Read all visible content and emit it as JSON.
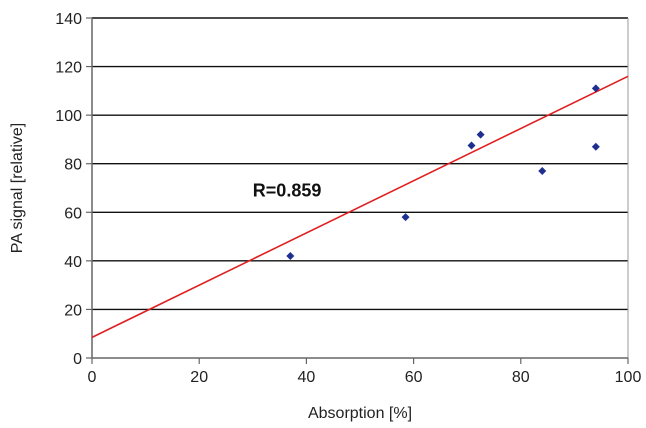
{
  "chart_data": {
    "type": "scatter",
    "title": "",
    "xlabel": "Absorption [%]",
    "ylabel": "PA signal [relative]",
    "xlim": [
      0,
      100
    ],
    "ylim": [
      0,
      140
    ],
    "x_ticks": [
      0,
      20,
      40,
      60,
      80,
      100
    ],
    "y_ticks": [
      0,
      20,
      40,
      60,
      80,
      100,
      120,
      140
    ],
    "grid": "horizontal",
    "legend": "none",
    "series": [
      {
        "points": [
          {
            "x": 37,
            "y": 42
          },
          {
            "x": 58.5,
            "y": 58
          },
          {
            "x": 70.8,
            "y": 87.5
          },
          {
            "x": 72.5,
            "y": 92
          },
          {
            "x": 84,
            "y": 77
          },
          {
            "x": 94,
            "y": 111
          },
          {
            "x": 94,
            "y": 87
          }
        ],
        "color": "#1f2f8f"
      }
    ],
    "trendline": {
      "type": "linear",
      "x": [
        0,
        100
      ],
      "y": [
        8.5,
        116
      ],
      "color": "#e02020"
    },
    "annotations": [
      {
        "text": "R=0.859",
        "x": 30,
        "y": 69
      }
    ]
  }
}
